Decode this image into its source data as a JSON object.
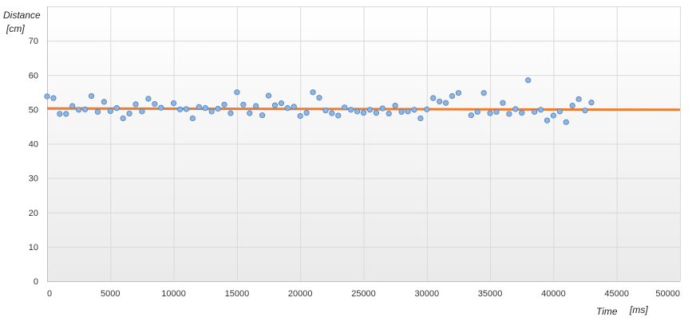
{
  "chart_data": {
    "type": "scatter",
    "title": "",
    "ylabel_line1": "Distance",
    "ylabel_line2": "[cm]",
    "xlabel_word": "Time",
    "xlabel_unit": "[ms]",
    "xlim": [
      0,
      50000
    ],
    "ylim": [
      0,
      80
    ],
    "x_ticks": [
      0,
      5000,
      10000,
      15000,
      20000,
      25000,
      30000,
      35000,
      40000,
      45000,
      50000
    ],
    "y_ticks": [
      0,
      10,
      20,
      30,
      40,
      50,
      60,
      70
    ],
    "grid": true,
    "legend": "none",
    "colors": {
      "points_fill": "#8db4e2",
      "points_stroke": "#4f81bd",
      "trend_line": "#ed7d31",
      "background_top": "#ffffff",
      "background_bottom": "#eaeaea"
    },
    "series": [
      {
        "kind": "points",
        "x": [
          0,
          500,
          1000,
          1500,
          2000,
          2500,
          3000,
          3500,
          4000,
          4500,
          5000,
          5500,
          6000,
          6500,
          7000,
          7500,
          8000,
          8500,
          9000,
          10000,
          10500,
          11000,
          11500,
          12000,
          12500,
          13000,
          13500,
          14000,
          14500,
          15000,
          15500,
          16000,
          16500,
          17000,
          17500,
          18000,
          18500,
          19000,
          19500,
          20000,
          20500,
          21000,
          21500,
          22000,
          22500,
          23000,
          23500,
          24000,
          24500,
          25000,
          25500,
          26000,
          26500,
          27000,
          27500,
          28000,
          28500,
          29000,
          29500,
          30000,
          30500,
          31000,
          31500,
          32000,
          32500,
          33500,
          34000,
          34500,
          35000,
          35500,
          36000,
          36500,
          37000,
          37500,
          38000,
          38500,
          39000,
          39500,
          40000,
          40500,
          41000,
          41500,
          42000,
          42500,
          43000
        ],
        "y": [
          53.8,
          53.3,
          48.7,
          48.7,
          51.0,
          49.9,
          50.0,
          53.9,
          49.3,
          52.2,
          49.5,
          50.4,
          47.4,
          48.8,
          51.5,
          49.4,
          53.1,
          51.6,
          50.5,
          51.8,
          50.0,
          50.1,
          47.4,
          50.7,
          50.4,
          49.4,
          50.2,
          51.4,
          48.9,
          55.0,
          51.4,
          48.9,
          51.0,
          48.3,
          54.0,
          51.2,
          51.8,
          50.4,
          50.8,
          48.1,
          49.0,
          55.0,
          53.4,
          49.7,
          48.9,
          48.2,
          50.6,
          49.9,
          49.4,
          49.0,
          49.9,
          49.0,
          50.3,
          48.8,
          51.1,
          49.3,
          49.4,
          49.9,
          47.4,
          50.0,
          53.3,
          52.3,
          51.9,
          53.9,
          54.8,
          48.3,
          49.3,
          54.8,
          48.9,
          49.3,
          51.9,
          48.7,
          50.1,
          49.0,
          58.5,
          49.3,
          49.9,
          46.8,
          48.2,
          49.4,
          46.3,
          51.1,
          53.0,
          49.7,
          52.0
        ]
      },
      {
        "kind": "line",
        "x": [
          0,
          50000
        ],
        "y": [
          50.3,
          49.9
        ]
      }
    ]
  }
}
